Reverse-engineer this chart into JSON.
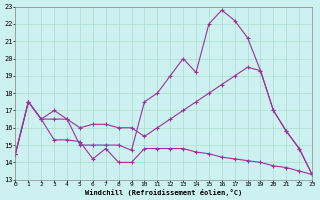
{
  "xlabel": "Windchill (Refroidissement éolien,°C)",
  "background_color": "#cdf0f0",
  "grid_color": "#aaddcc",
  "line_color": "#993399",
  "xlim": [
    0,
    23
  ],
  "ylim": [
    13,
    23
  ],
  "yticks": [
    13,
    14,
    15,
    16,
    17,
    18,
    19,
    20,
    21,
    22,
    23
  ],
  "xticks": [
    0,
    1,
    2,
    3,
    4,
    5,
    6,
    7,
    8,
    9,
    10,
    11,
    12,
    13,
    14,
    15,
    16,
    17,
    18,
    19,
    20,
    21,
    22,
    23
  ],
  "series": [
    {
      "x": [
        0,
        1,
        2,
        3,
        4,
        5,
        6,
        7,
        8,
        9,
        10,
        11,
        12,
        13,
        14,
        15,
        16,
        17,
        18,
        19,
        20,
        21,
        22,
        23
      ],
      "y": [
        14.5,
        17.5,
        16.5,
        17.0,
        16.5,
        15.0,
        15.0,
        15.0,
        15.0,
        14.7,
        17.5,
        18.0,
        19.0,
        20.0,
        19.2,
        22.0,
        22.8,
        22.2,
        21.2,
        19.3,
        17.0,
        15.8,
        14.8,
        13.3
      ]
    },
    {
      "x": [
        0,
        1,
        2,
        3,
        4,
        5,
        6,
        7,
        8,
        9,
        10,
        11,
        12,
        13,
        14,
        15,
        16,
        17,
        18,
        19,
        20,
        21,
        22,
        23
      ],
      "y": [
        14.5,
        17.5,
        16.5,
        16.5,
        16.5,
        16.0,
        16.2,
        16.2,
        16.0,
        16.0,
        15.5,
        16.0,
        16.5,
        17.0,
        17.5,
        18.0,
        18.5,
        19.0,
        19.5,
        19.3,
        17.0,
        15.8,
        14.8,
        13.3
      ]
    },
    {
      "x": [
        0,
        1,
        2,
        3,
        4,
        5,
        6,
        7,
        8,
        9,
        10,
        11,
        12,
        13,
        14,
        15,
        16,
        17,
        18,
        19,
        20,
        21,
        22,
        23
      ],
      "y": [
        14.5,
        17.5,
        16.5,
        15.3,
        15.3,
        15.2,
        14.2,
        14.8,
        14.0,
        14.0,
        14.8,
        14.8,
        14.8,
        14.8,
        14.6,
        14.5,
        14.3,
        14.2,
        14.1,
        14.0,
        13.8,
        13.7,
        13.5,
        13.3
      ]
    }
  ]
}
